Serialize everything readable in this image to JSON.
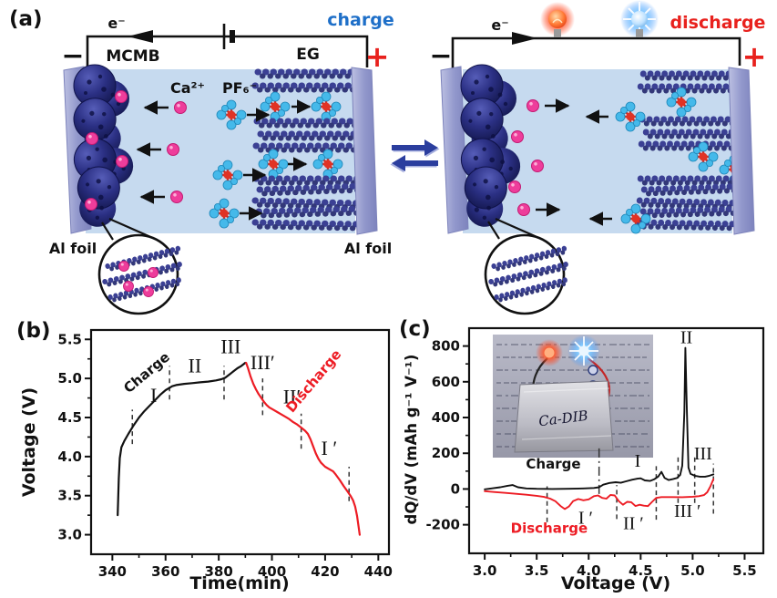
{
  "panel_a": {
    "label": "(a)",
    "anode_label": "MCMB",
    "cathode_label": "EG",
    "cation_label": "Ca²⁺",
    "anion_label": "PF₆⁻",
    "electron_label": "e⁻",
    "al_foil_left": "Al foil",
    "al_foil_right": "Al foil",
    "left_cell": {
      "mode_label": "charge",
      "mode_color": "#1e6fc8",
      "neg": "−",
      "pos": "+"
    },
    "right_cell": {
      "mode_label": "discharge",
      "mode_color": "#e8211d",
      "neg": "−",
      "pos": "+"
    }
  },
  "panel_b": {
    "label": "(b)"
  },
  "panel_c": {
    "label": "(c)",
    "inset_caption": "Ca-DIB"
  },
  "colors": {
    "charge_curve": "#111111",
    "discharge_curve": "#ed1c24",
    "electrolyte": "#c6daef",
    "foil": "#9298cc",
    "graphite": "#3b4094",
    "cation_pink": "#ee3d9b",
    "anion_blue": "#45b9ea"
  },
  "chart_data": [
    {
      "id": "b",
      "type": "line",
      "title": "",
      "xlabel": "Time(min)",
      "ylabel": "Voltage (V)",
      "xlim": [
        332,
        444
      ],
      "ylim": [
        2.75,
        5.62
      ],
      "grid": false,
      "xticks": [
        [
          340,
          "340"
        ],
        [
          360,
          "360"
        ],
        [
          380,
          "380"
        ],
        [
          400,
          "400"
        ],
        [
          420,
          "420"
        ],
        [
          440,
          "440"
        ]
      ],
      "yticks": [
        [
          3.0,
          "3.0"
        ],
        [
          3.5,
          "3.5"
        ],
        [
          4.0,
          "4.0"
        ],
        [
          4.5,
          "4.5"
        ],
        [
          5.0,
          "5.0"
        ],
        [
          5.5,
          "5.5"
        ]
      ],
      "series": [
        {
          "name": "Charge",
          "color": "#111111",
          "points": [
            [
              342,
              3.25
            ],
            [
              342.4,
              3.72
            ],
            [
              342.8,
              3.98
            ],
            [
              343.4,
              4.12
            ],
            [
              344.5,
              4.2
            ],
            [
              346,
              4.29
            ],
            [
              348,
              4.4
            ],
            [
              350,
              4.5
            ],
            [
              352,
              4.58
            ],
            [
              354,
              4.65
            ],
            [
              356,
              4.72
            ],
            [
              358,
              4.79
            ],
            [
              360,
              4.85
            ],
            [
              361.5,
              4.88
            ],
            [
              362.5,
              4.9
            ],
            [
              364,
              4.915
            ],
            [
              367,
              4.93
            ],
            [
              370,
              4.94
            ],
            [
              373,
              4.95
            ],
            [
              376,
              4.96
            ],
            [
              379,
              4.975
            ],
            [
              381,
              4.99
            ],
            [
              382.5,
              5.01
            ],
            [
              384,
              5.05
            ],
            [
              385.5,
              5.09
            ],
            [
              387,
              5.13
            ],
            [
              388.5,
              5.16
            ],
            [
              390,
              5.2
            ]
          ]
        },
        {
          "name": "Discharge",
          "color": "#ed1c24",
          "points": [
            [
              390.3,
              5.2
            ],
            [
              391,
              5.13
            ],
            [
              392,
              5.02
            ],
            [
              393,
              4.93
            ],
            [
              394,
              4.86
            ],
            [
              395,
              4.8
            ],
            [
              396,
              4.75
            ],
            [
              397,
              4.7
            ],
            [
              398,
              4.66
            ],
            [
              399,
              4.63
            ],
            [
              400.5,
              4.6
            ],
            [
              402,
              4.57
            ],
            [
              403.5,
              4.54
            ],
            [
              405,
              4.51
            ],
            [
              406.5,
              4.48
            ],
            [
              408,
              4.44
            ],
            [
              409.5,
              4.41
            ],
            [
              411,
              4.37
            ],
            [
              412.5,
              4.33
            ],
            [
              413.5,
              4.29
            ],
            [
              414.5,
              4.22
            ],
            [
              415.5,
              4.13
            ],
            [
              416.5,
              4.04
            ],
            [
              417.5,
              3.97
            ],
            [
              418.5,
              3.92
            ],
            [
              420,
              3.87
            ],
            [
              421.5,
              3.84
            ],
            [
              423,
              3.81
            ],
            [
              424,
              3.77
            ],
            [
              425.5,
              3.7
            ],
            [
              427,
              3.62
            ],
            [
              428.5,
              3.55
            ],
            [
              429.5,
              3.5
            ],
            [
              430.5,
              3.44
            ],
            [
              431.3,
              3.36
            ],
            [
              432,
              3.24
            ],
            [
              432.6,
              3.1
            ],
            [
              433,
              3.0
            ]
          ]
        }
      ],
      "dashed_lines": [
        {
          "x": 347.5,
          "y1": 4.16,
          "y2": 4.6
        },
        {
          "x": 361.5,
          "y1": 4.73,
          "y2": 5.16
        },
        {
          "x": 382,
          "y1": 4.73,
          "y2": 5.16
        },
        {
          "x": 396.5,
          "y1": 4.53,
          "y2": 5.0
        },
        {
          "x": 411,
          "y1": 4.1,
          "y2": 4.55
        },
        {
          "x": 429,
          "y1": 3.43,
          "y2": 3.87
        }
      ],
      "annotations": [
        {
          "text": "Charge",
          "x": 354,
          "y": 5.03,
          "rot": -40,
          "color": "#111111",
          "size": 15,
          "bold": true
        },
        {
          "text": "I",
          "x": 355.5,
          "y": 4.7,
          "font": "serif",
          "size": 22
        },
        {
          "text": "II",
          "x": 371,
          "y": 5.08,
          "font": "serif",
          "size": 22
        },
        {
          "text": "III",
          "x": 384.5,
          "y": 5.32,
          "font": "serif",
          "size": 22
        },
        {
          "text": "III′",
          "x": 396.5,
          "y": 5.12,
          "font": "serif",
          "size": 22
        },
        {
          "text": "II′",
          "x": 407.5,
          "y": 4.68,
          "font": "serif",
          "size": 22
        },
        {
          "text": "Discharge",
          "x": 417,
          "y": 4.93,
          "rot": -50,
          "color": "#ed1c24",
          "size": 15,
          "bold": true
        },
        {
          "text": "I ′",
          "x": 421.5,
          "y": 4.02,
          "font": "serif",
          "size": 22
        }
      ]
    },
    {
      "id": "c",
      "type": "line",
      "title": "",
      "xlabel": "Voltage (V)",
      "ylabel": "dQ/dV (mAh g⁻¹ V⁻¹)",
      "xlim": [
        2.85,
        5.68
      ],
      "ylim": [
        -360,
        900
      ],
      "grid": false,
      "xticks": [
        [
          3.0,
          "3.0"
        ],
        [
          3.5,
          "3.5"
        ],
        [
          4.0,
          "4.0"
        ],
        [
          4.5,
          "4.5"
        ],
        [
          5.0,
          "5.0"
        ],
        [
          5.5,
          "5.5"
        ]
      ],
      "yticks": [
        [
          -200,
          "-200"
        ],
        [
          0,
          "0"
        ],
        [
          200,
          "200"
        ],
        [
          400,
          "400"
        ],
        [
          600,
          "600"
        ],
        [
          800,
          "800"
        ]
      ],
      "series": [
        {
          "name": "Charge",
          "color": "#111111",
          "points": [
            [
              3.0,
              -2
            ],
            [
              3.08,
              4
            ],
            [
              3.15,
              10
            ],
            [
              3.22,
              18
            ],
            [
              3.27,
              22
            ],
            [
              3.32,
              10
            ],
            [
              3.4,
              3
            ],
            [
              3.5,
              1
            ],
            [
              3.65,
              0
            ],
            [
              3.8,
              1
            ],
            [
              3.95,
              3
            ],
            [
              4.05,
              6
            ],
            [
              4.1,
              10
            ],
            [
              4.14,
              24
            ],
            [
              4.2,
              34
            ],
            [
              4.26,
              38
            ],
            [
              4.31,
              35
            ],
            [
              4.36,
              43
            ],
            [
              4.42,
              52
            ],
            [
              4.47,
              58
            ],
            [
              4.5,
              60
            ],
            [
              4.54,
              48
            ],
            [
              4.59,
              45
            ],
            [
              4.63,
              54
            ],
            [
              4.67,
              70
            ],
            [
              4.7,
              96
            ],
            [
              4.73,
              62
            ],
            [
              4.77,
              50
            ],
            [
              4.81,
              55
            ],
            [
              4.85,
              62
            ],
            [
              4.88,
              78
            ],
            [
              4.9,
              130
            ],
            [
              4.92,
              430
            ],
            [
              4.93,
              790
            ],
            [
              4.945,
              430
            ],
            [
              4.96,
              120
            ],
            [
              4.98,
              85
            ],
            [
              5.02,
              74
            ],
            [
              5.07,
              69
            ],
            [
              5.12,
              69
            ],
            [
              5.16,
              74
            ],
            [
              5.2,
              82
            ]
          ]
        },
        {
          "name": "Discharge",
          "color": "#ed1c24",
          "points": [
            [
              3.0,
              -12
            ],
            [
              3.1,
              -17
            ],
            [
              3.2,
              -22
            ],
            [
              3.3,
              -27
            ],
            [
              3.4,
              -32
            ],
            [
              3.5,
              -38
            ],
            [
              3.57,
              -44
            ],
            [
              3.63,
              -54
            ],
            [
              3.68,
              -68
            ],
            [
              3.73,
              -95
            ],
            [
              3.77,
              -112
            ],
            [
              3.81,
              -98
            ],
            [
              3.85,
              -68
            ],
            [
              3.9,
              -56
            ],
            [
              3.95,
              -63
            ],
            [
              4.0,
              -58
            ],
            [
              4.05,
              -40
            ],
            [
              4.09,
              -36
            ],
            [
              4.13,
              -50
            ],
            [
              4.17,
              -54
            ],
            [
              4.21,
              -33
            ],
            [
              4.25,
              -36
            ],
            [
              4.29,
              -68
            ],
            [
              4.33,
              -88
            ],
            [
              4.37,
              -72
            ],
            [
              4.41,
              -74
            ],
            [
              4.45,
              -95
            ],
            [
              4.49,
              -88
            ],
            [
              4.53,
              -93
            ],
            [
              4.57,
              -96
            ],
            [
              4.61,
              -72
            ],
            [
              4.65,
              -50
            ],
            [
              4.7,
              -45
            ],
            [
              4.8,
              -45
            ],
            [
              4.9,
              -46
            ],
            [
              5.0,
              -43
            ],
            [
              5.06,
              -40
            ],
            [
              5.11,
              -34
            ],
            [
              5.14,
              -18
            ],
            [
              5.17,
              14
            ],
            [
              5.2,
              55
            ]
          ]
        }
      ],
      "dashed_lines": [
        {
          "x": 3.6,
          "y1": -185,
          "y2": 15
        },
        {
          "x": 4.1,
          "y1": -28,
          "y2": 238,
          "dash": "10 4 2 4"
        },
        {
          "x": 4.27,
          "y1": -168,
          "y2": 22
        },
        {
          "x": 4.65,
          "y1": -172,
          "y2": 128
        },
        {
          "x": 4.86,
          "y1": -78,
          "y2": 188
        },
        {
          "x": 5.02,
          "y1": -78,
          "y2": 188
        },
        {
          "x": 5.2,
          "y1": -138,
          "y2": 142
        }
      ],
      "annotations": [
        {
          "text": "Charge",
          "x": 3.66,
          "y": 115,
          "color": "#111111",
          "size": 15,
          "bold": true
        },
        {
          "text": "Discharge",
          "x": 3.62,
          "y": -245,
          "color": "#ed1c24",
          "size": 15,
          "bold": true
        },
        {
          "text": "I ′",
          "x": 3.97,
          "y": -195,
          "font": "serif",
          "size": 20
        },
        {
          "text": "II ′",
          "x": 4.43,
          "y": -225,
          "font": "serif",
          "size": 20
        },
        {
          "text": "III ′",
          "x": 4.95,
          "y": -155,
          "font": "serif",
          "size": 20
        },
        {
          "text": "I",
          "x": 4.47,
          "y": 125,
          "font": "serif",
          "size": 20
        },
        {
          "text": "II",
          "x": 4.94,
          "y": 815,
          "font": "serif",
          "size": 20
        },
        {
          "text": "III",
          "x": 5.1,
          "y": 165,
          "font": "serif",
          "size": 20
        }
      ]
    }
  ]
}
